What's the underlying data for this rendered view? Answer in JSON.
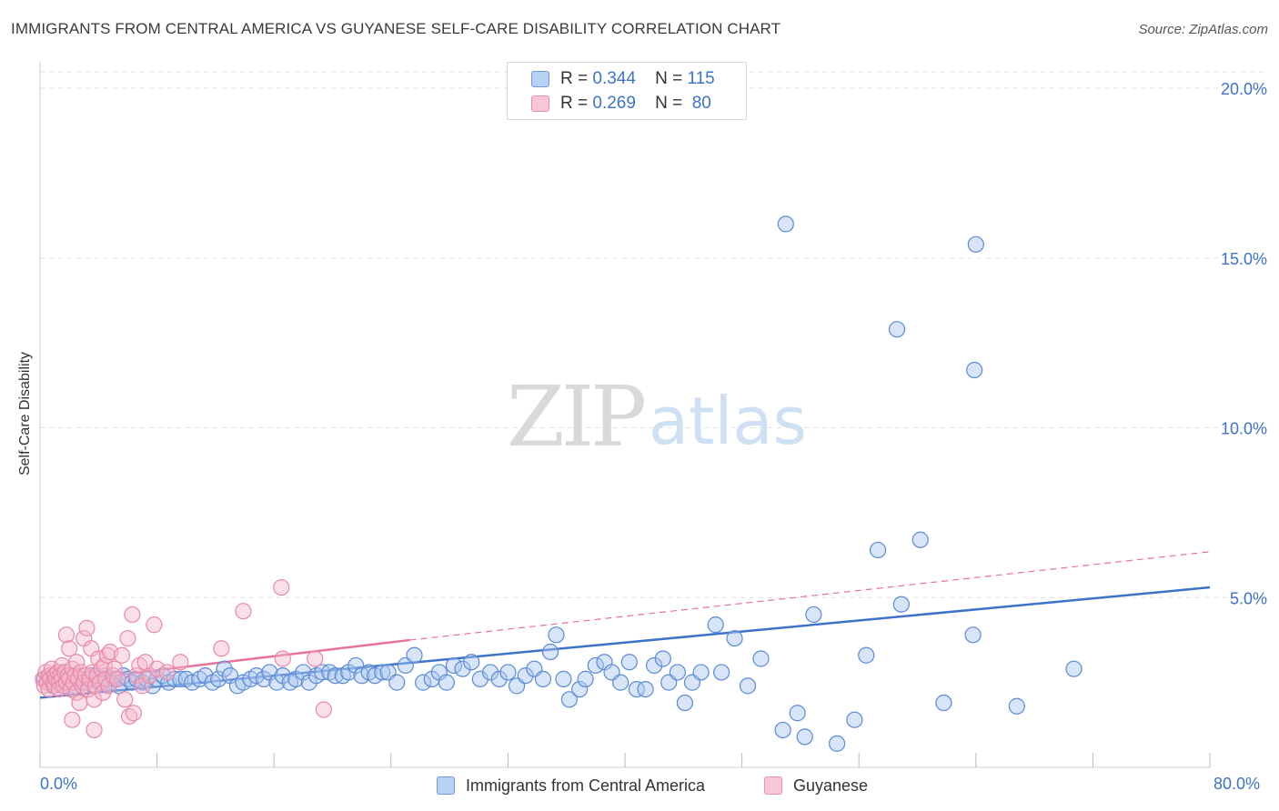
{
  "title": "IMMIGRANTS FROM CENTRAL AMERICA VS GUYANESE SELF-CARE DISABILITY CORRELATION CHART",
  "source": "Source: ZipAtlas.com",
  "colors": {
    "blue": "#3d73c9",
    "blue_fill": "#a9c6f0",
    "pink": "#e8719a",
    "pink_fill": "#f5b8cc",
    "grid": "#dcdcdc"
  },
  "legend": {
    "rows": [
      {
        "r_label": "R =",
        "r_value": "0.344",
        "n_label": "N =",
        "n_value": "115"
      },
      {
        "r_label": "R =",
        "r_value": "0.269",
        "n_label": "N =",
        "n_value": "80"
      }
    ]
  },
  "watermark": {
    "zip": "ZIP",
    "atlas": "atlas"
  },
  "chart_data": {
    "type": "scatter",
    "title": "IMMIGRANTS FROM CENTRAL AMERICA VS GUYANESE SELF-CARE DISABILITY CORRELATION CHART",
    "xlabel": "",
    "ylabel": "Self-Care Disability",
    "xlim": [
      0,
      80
    ],
    "ylim": [
      0,
      20
    ],
    "x_tick_labels": [
      "0.0%",
      "80.0%"
    ],
    "y_ticks": [
      5,
      10,
      15,
      20
    ],
    "y_tick_labels": [
      "5.0%",
      "10.0%",
      "15.0%",
      "20.0%"
    ],
    "series": [
      {
        "name": "Immigrants from Central America",
        "color": "#3d73c9",
        "r": 0.344,
        "n": 115,
        "trend": {
          "x": [
            0,
            80
          ],
          "y": [
            2.05,
            5.3
          ]
        },
        "points": [
          [
            0.3,
            2.6
          ],
          [
            0.5,
            2.5
          ],
          [
            0.7,
            2.7
          ],
          [
            0.9,
            2.4
          ],
          [
            1.0,
            2.6
          ],
          [
            1.2,
            2.5
          ],
          [
            1.4,
            2.8
          ],
          [
            1.5,
            2.5
          ],
          [
            1.7,
            2.4
          ],
          [
            1.9,
            2.6
          ],
          [
            2.0,
            2.5
          ],
          [
            2.2,
            2.7
          ],
          [
            2.4,
            2.4
          ],
          [
            2.6,
            2.6
          ],
          [
            2.8,
            2.5
          ],
          [
            3.0,
            2.6
          ],
          [
            3.2,
            2.5
          ],
          [
            3.5,
            2.7
          ],
          [
            3.7,
            2.4
          ],
          [
            4.0,
            2.6
          ],
          [
            4.2,
            2.5
          ],
          [
            4.5,
            2.7
          ],
          [
            4.8,
            2.5
          ],
          [
            5.1,
            2.6
          ],
          [
            5.4,
            2.4
          ],
          [
            5.7,
            2.7
          ],
          [
            6.0,
            2.6
          ],
          [
            6.3,
            2.5
          ],
          [
            6.6,
            2.6
          ],
          [
            7.0,
            2.5
          ],
          [
            7.3,
            2.6
          ],
          [
            7.7,
            2.4
          ],
          [
            8.0,
            2.6
          ],
          [
            8.4,
            2.7
          ],
          [
            8.8,
            2.5
          ],
          [
            9.2,
            2.6
          ],
          [
            9.6,
            2.6
          ],
          [
            10.0,
            2.6
          ],
          [
            10.4,
            2.5
          ],
          [
            10.9,
            2.6
          ],
          [
            11.3,
            2.7
          ],
          [
            11.8,
            2.5
          ],
          [
            12.2,
            2.6
          ],
          [
            12.6,
            2.9
          ],
          [
            13.0,
            2.7
          ],
          [
            13.5,
            2.4
          ],
          [
            13.9,
            2.5
          ],
          [
            14.4,
            2.6
          ],
          [
            14.8,
            2.7
          ],
          [
            15.3,
            2.6
          ],
          [
            15.7,
            2.8
          ],
          [
            16.2,
            2.5
          ],
          [
            16.6,
            2.7
          ],
          [
            17.1,
            2.5
          ],
          [
            17.5,
            2.6
          ],
          [
            18.0,
            2.8
          ],
          [
            18.4,
            2.5
          ],
          [
            18.9,
            2.7
          ],
          [
            19.3,
            2.8
          ],
          [
            19.8,
            2.8
          ],
          [
            20.2,
            2.7
          ],
          [
            20.7,
            2.7
          ],
          [
            21.1,
            2.8
          ],
          [
            21.6,
            3.0
          ],
          [
            22.0,
            2.7
          ],
          [
            22.5,
            2.8
          ],
          [
            22.9,
            2.7
          ],
          [
            23.4,
            2.8
          ],
          [
            23.8,
            2.8
          ],
          [
            24.4,
            2.5
          ],
          [
            25.0,
            3.0
          ],
          [
            25.6,
            3.3
          ],
          [
            26.2,
            2.5
          ],
          [
            26.8,
            2.6
          ],
          [
            27.3,
            2.8
          ],
          [
            27.8,
            2.5
          ],
          [
            28.3,
            3.0
          ],
          [
            28.9,
            2.9
          ],
          [
            29.5,
            3.1
          ],
          [
            30.1,
            2.6
          ],
          [
            30.8,
            2.8
          ],
          [
            31.4,
            2.6
          ],
          [
            32.0,
            2.8
          ],
          [
            32.6,
            2.4
          ],
          [
            33.2,
            2.7
          ],
          [
            33.8,
            2.9
          ],
          [
            34.4,
            2.6
          ],
          [
            34.9,
            3.4
          ],
          [
            35.3,
            3.9
          ],
          [
            35.8,
            2.6
          ],
          [
            36.2,
            2.0
          ],
          [
            36.9,
            2.3
          ],
          [
            37.3,
            2.6
          ],
          [
            38.0,
            3.0
          ],
          [
            38.6,
            3.1
          ],
          [
            39.1,
            2.8
          ],
          [
            39.7,
            2.5
          ],
          [
            40.3,
            3.1
          ],
          [
            40.8,
            2.3
          ],
          [
            41.4,
            2.3
          ],
          [
            42.0,
            3.0
          ],
          [
            42.6,
            3.2
          ],
          [
            43.0,
            2.5
          ],
          [
            43.6,
            2.8
          ],
          [
            44.1,
            1.9
          ],
          [
            44.6,
            2.5
          ],
          [
            45.2,
            2.8
          ],
          [
            46.2,
            4.2
          ],
          [
            46.6,
            2.8
          ],
          [
            47.5,
            3.8
          ],
          [
            48.4,
            2.4
          ],
          [
            49.3,
            3.2
          ],
          [
            50.8,
            1.1
          ],
          [
            51.0,
            16.0
          ],
          [
            51.8,
            1.6
          ],
          [
            52.3,
            0.9
          ],
          [
            52.9,
            4.5
          ],
          [
            54.5,
            0.7
          ],
          [
            55.7,
            1.4
          ],
          [
            56.5,
            3.3
          ],
          [
            57.3,
            6.4
          ],
          [
            58.6,
            12.9
          ],
          [
            58.9,
            4.8
          ],
          [
            60.2,
            6.7
          ],
          [
            61.8,
            1.9
          ],
          [
            63.8,
            3.9
          ],
          [
            63.9,
            11.7
          ],
          [
            64.0,
            15.4
          ],
          [
            66.8,
            1.8
          ],
          [
            70.7,
            2.9
          ]
        ]
      },
      {
        "name": "Guyanese",
        "color": "#e8719a",
        "r": 0.269,
        "n": 80,
        "trend": {
          "x": [
            0,
            25.3
          ],
          "y": [
            2.45,
            3.75
          ]
        },
        "trend_dashed": {
          "x": [
            25.3,
            80
          ],
          "y": [
            3.75,
            6.35
          ]
        },
        "points": [
          [
            0.2,
            2.6
          ],
          [
            0.3,
            2.4
          ],
          [
            0.4,
            2.8
          ],
          [
            0.5,
            2.5
          ],
          [
            0.6,
            2.7
          ],
          [
            0.6,
            2.3
          ],
          [
            0.7,
            2.6
          ],
          [
            0.8,
            2.9
          ],
          [
            0.9,
            2.5
          ],
          [
            1.0,
            2.7
          ],
          [
            1.0,
            2.4
          ],
          [
            1.1,
            2.6
          ],
          [
            1.2,
            2.8
          ],
          [
            1.3,
            2.5
          ],
          [
            1.3,
            2.3
          ],
          [
            1.4,
            2.7
          ],
          [
            1.5,
            2.6
          ],
          [
            1.5,
            3.0
          ],
          [
            1.6,
            2.4
          ],
          [
            1.7,
            2.8
          ],
          [
            1.8,
            2.5
          ],
          [
            1.8,
            3.9
          ],
          [
            1.9,
            2.7
          ],
          [
            2.0,
            2.6
          ],
          [
            2.0,
            3.5
          ],
          [
            2.1,
            2.3
          ],
          [
            2.2,
            2.9
          ],
          [
            2.2,
            1.4
          ],
          [
            2.3,
            2.5
          ],
          [
            2.4,
            2.7
          ],
          [
            2.5,
            3.1
          ],
          [
            2.5,
            2.2
          ],
          [
            2.6,
            2.6
          ],
          [
            2.7,
            1.9
          ],
          [
            2.8,
            2.8
          ],
          [
            2.9,
            2.4
          ],
          [
            3.0,
            3.8
          ],
          [
            3.0,
            2.5
          ],
          [
            3.1,
            2.7
          ],
          [
            3.2,
            4.1
          ],
          [
            3.3,
            2.3
          ],
          [
            3.4,
            2.6
          ],
          [
            3.5,
            3.5
          ],
          [
            3.6,
            2.8
          ],
          [
            3.7,
            2.0
          ],
          [
            3.7,
            1.1
          ],
          [
            3.8,
            2.4
          ],
          [
            3.9,
            2.7
          ],
          [
            4.0,
            3.2
          ],
          [
            4.1,
            2.5
          ],
          [
            4.2,
            2.9
          ],
          [
            4.3,
            2.2
          ],
          [
            4.4,
            3.0
          ],
          [
            4.5,
            2.6
          ],
          [
            4.6,
            3.3
          ],
          [
            4.7,
            2.4
          ],
          [
            4.8,
            3.4
          ],
          [
            5.0,
            2.7
          ],
          [
            5.1,
            2.9
          ],
          [
            5.3,
            2.6
          ],
          [
            5.6,
            3.3
          ],
          [
            5.8,
            2.0
          ],
          [
            6.0,
            3.8
          ],
          [
            6.1,
            1.5
          ],
          [
            6.3,
            4.5
          ],
          [
            6.4,
            1.6
          ],
          [
            6.6,
            2.7
          ],
          [
            6.8,
            3.0
          ],
          [
            7.0,
            2.4
          ],
          [
            7.2,
            3.1
          ],
          [
            7.5,
            2.7
          ],
          [
            7.8,
            4.2
          ],
          [
            8.0,
            2.9
          ],
          [
            8.7,
            2.8
          ],
          [
            9.6,
            3.1
          ],
          [
            12.4,
            3.5
          ],
          [
            13.9,
            4.6
          ],
          [
            16.5,
            5.3
          ],
          [
            16.6,
            3.2
          ],
          [
            18.8,
            3.2
          ],
          [
            19.4,
            1.7
          ]
        ]
      }
    ]
  },
  "bottom_legend": {
    "series1_label": "Immigrants from Central America",
    "series2_label": "Guyanese"
  }
}
